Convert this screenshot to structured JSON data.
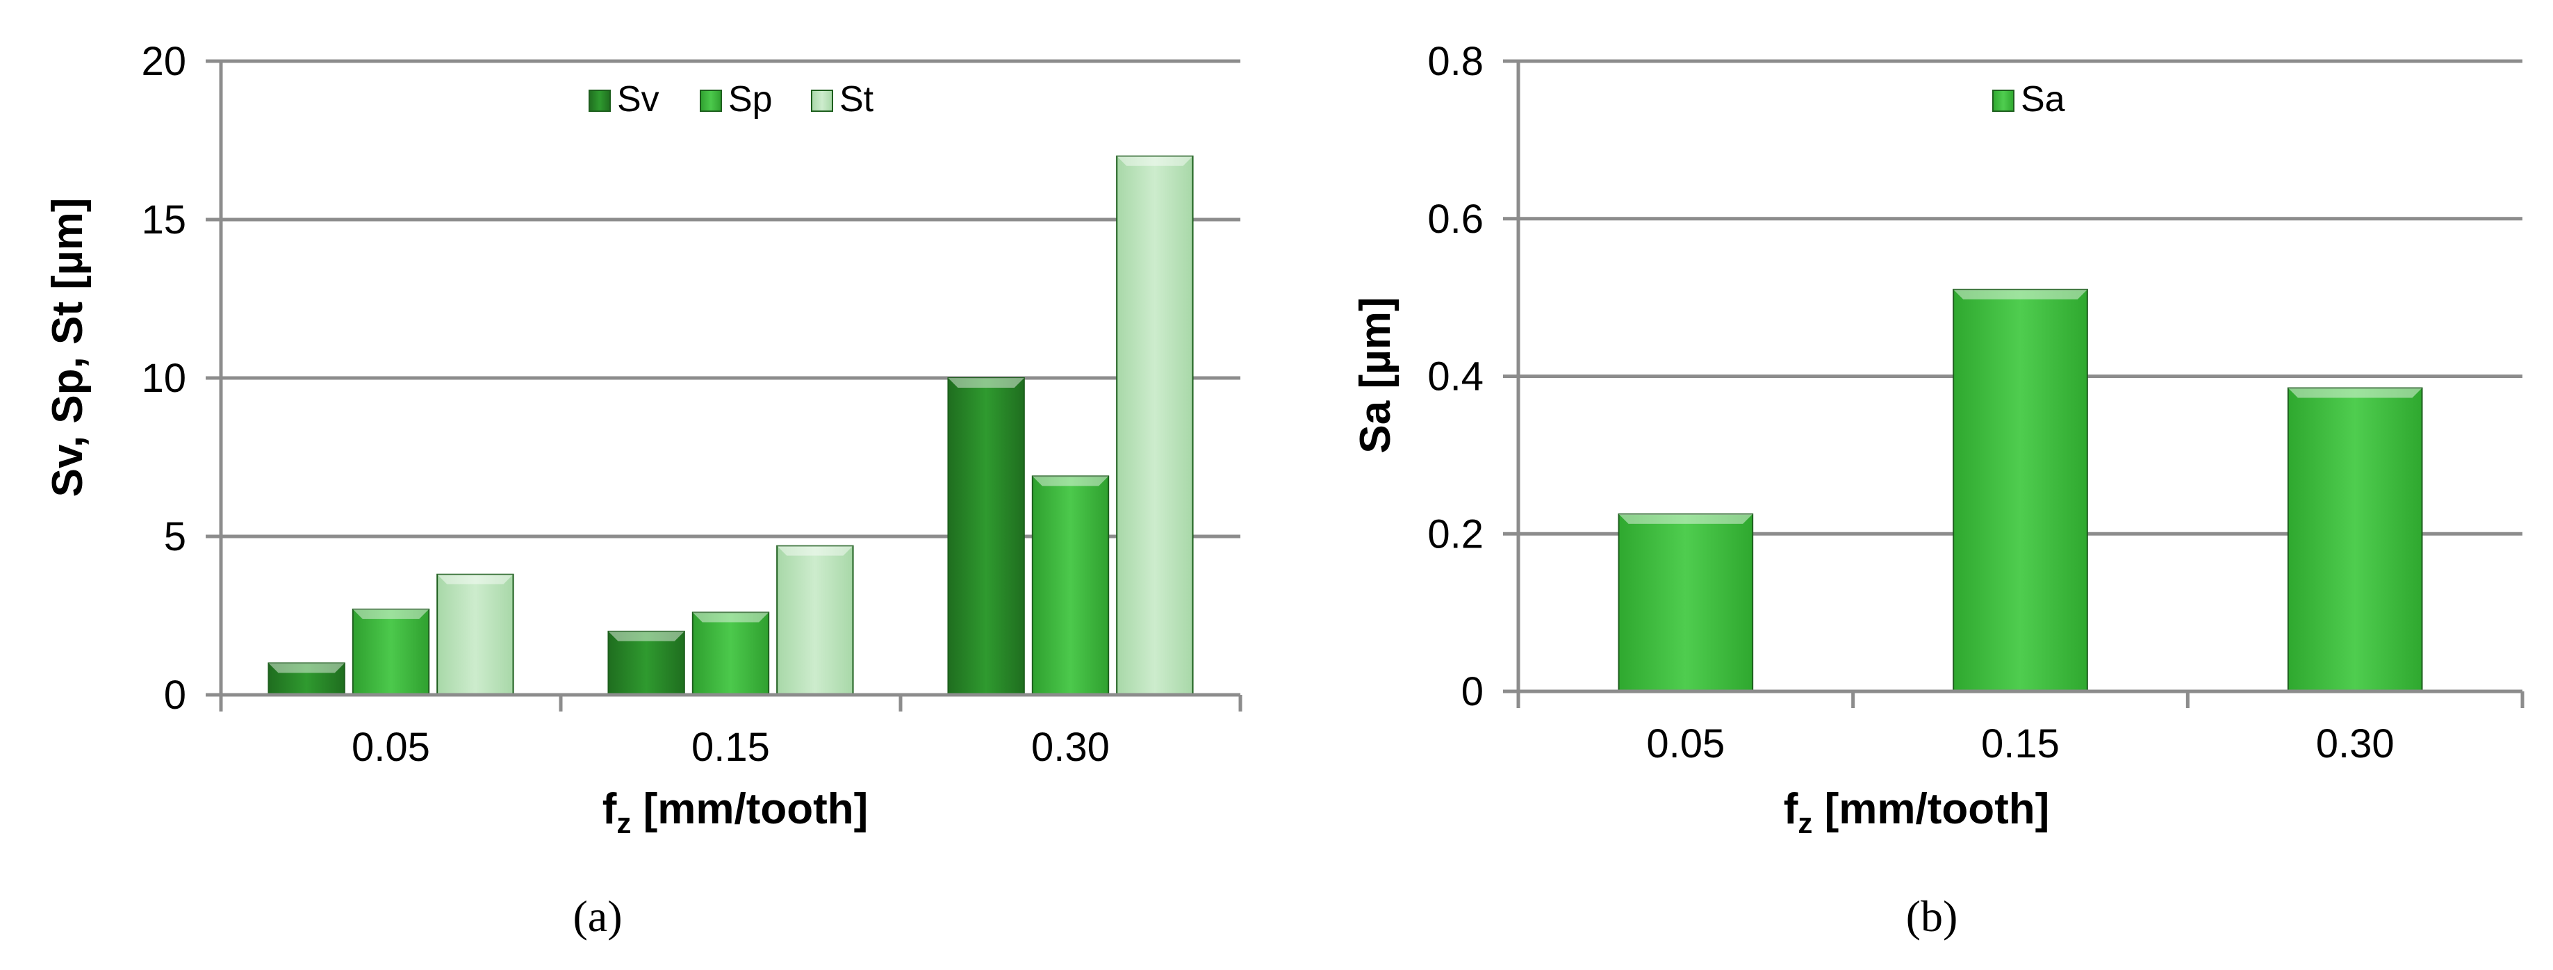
{
  "chart_data": [
    {
      "type": "bar",
      "categories": [
        "0.05",
        "0.15",
        "0.30"
      ],
      "series": [
        {
          "name": "Sv",
          "values": [
            1.0,
            2.0,
            10.0
          ],
          "color": "#2e8b2e"
        },
        {
          "name": "Sp",
          "values": [
            2.7,
            2.6,
            6.9
          ],
          "color": "#3fb83f"
        },
        {
          "name": "St",
          "values": [
            3.8,
            4.7,
            17.0
          ],
          "color": "#bfe5bf"
        }
      ],
      "xlabel": "f",
      "xlabel_sub": "z",
      "xlabel_rest": " [mm/tooth]",
      "ylabel": "Sv, Sp, St [µm]",
      "ylim": [
        0,
        20
      ],
      "yticks": [
        "0",
        "5",
        "10",
        "15",
        "20"
      ],
      "grid": true,
      "legend": "top-center",
      "caption": "(a)"
    },
    {
      "type": "bar",
      "categories": [
        "0.05",
        "0.15",
        "0.30"
      ],
      "series": [
        {
          "name": "Sa",
          "values": [
            0.225,
            0.51,
            0.385
          ],
          "color": "#3fb83f"
        }
      ],
      "xlabel": "f",
      "xlabel_sub": "z",
      "xlabel_rest": " [mm/tooth]",
      "ylabel": "Sa [µm]",
      "ylim": [
        0,
        0.8
      ],
      "yticks": [
        "0",
        "0.2",
        "0.4",
        "0.6",
        "0.8"
      ],
      "grid": true,
      "legend": "top-center",
      "caption": "(b)"
    }
  ]
}
